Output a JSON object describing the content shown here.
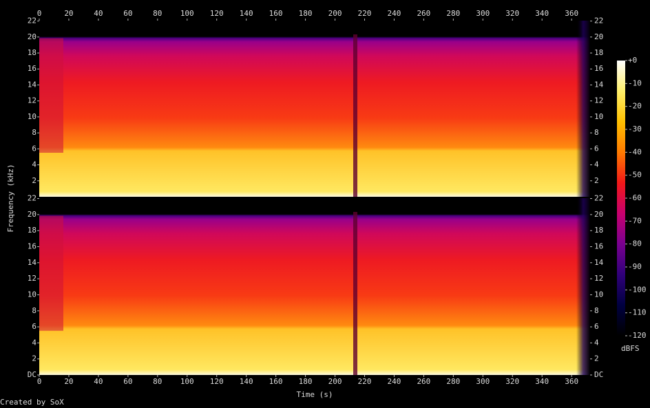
{
  "chart_data": {
    "type": "spectrogram",
    "x_label": "Time (s)",
    "y_label": "Frequency (kHz)",
    "footer": "Created by SoX",
    "xlim": [
      0,
      372.5
    ],
    "xticks": [
      0,
      20,
      40,
      60,
      80,
      100,
      120,
      140,
      160,
      180,
      200,
      220,
      240,
      260,
      280,
      300,
      320,
      340,
      360
    ],
    "channels": [
      {
        "ylim": [
          0,
          22.05
        ],
        "yticks": [
          2,
          4,
          6,
          8,
          10,
          12,
          14,
          16,
          18,
          20,
          22
        ]
      },
      {
        "ylim": [
          0,
          22.05
        ],
        "yticks": [
          {
            "value": 0,
            "label": "DC"
          },
          2,
          4,
          6,
          8,
          10,
          12,
          14,
          16,
          18,
          20,
          22
        ]
      }
    ],
    "colorbar": {
      "label": "dBFS",
      "lim": [
        -120,
        0
      ],
      "ticks": [
        {
          "value": 0,
          "label": "+0"
        },
        -10,
        -20,
        -30,
        -40,
        -50,
        -60,
        -70,
        -80,
        -90,
        -100,
        -110,
        -120
      ],
      "colors": [
        "#ffffff",
        "#ffef6a",
        "#ffc000",
        "#ff7a00",
        "#f21818",
        "#c8006e",
        "#7a0090",
        "#30007a",
        "#000040",
        "#000000"
      ]
    }
  }
}
